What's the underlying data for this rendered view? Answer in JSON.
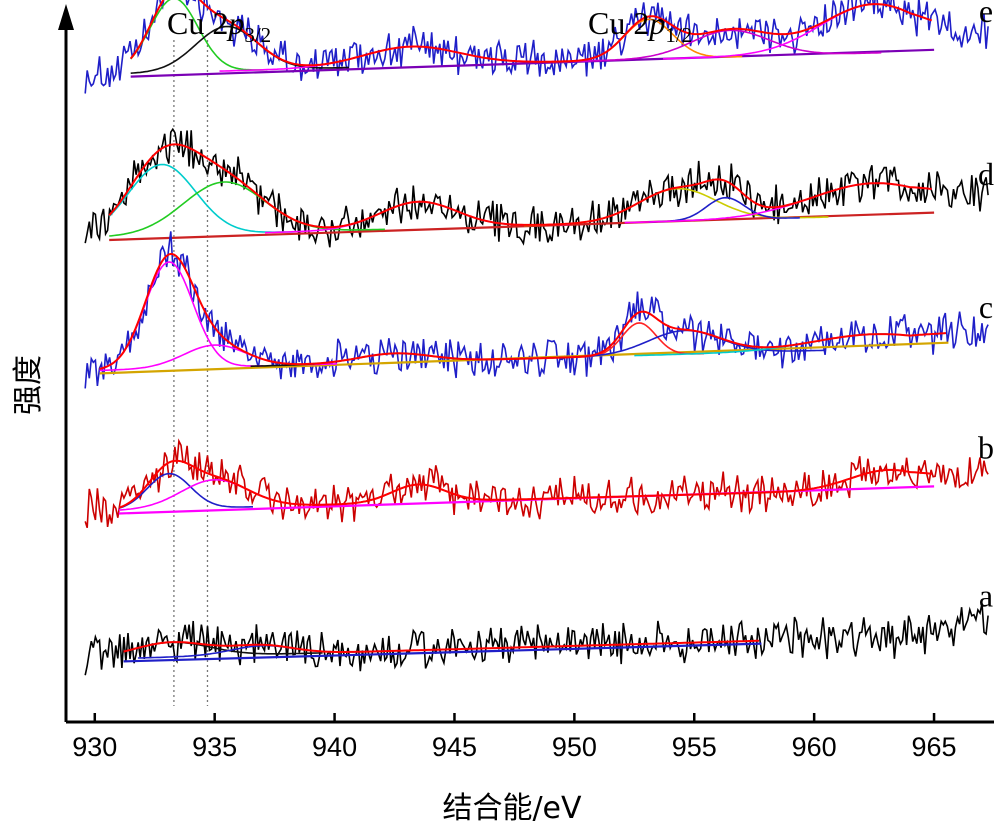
{
  "chart_data": {
    "type": "line",
    "xlabel": "结合能/eV",
    "ylabel": "强度",
    "xlim": [
      928.8,
      967.5
    ],
    "xticks": [
      930,
      935,
      940,
      945,
      950,
      955,
      960,
      965
    ],
    "xtick_labels": [
      "930",
      "935",
      "940",
      "945",
      "950",
      "955",
      "960",
      "965"
    ],
    "y_ticks_shown": false,
    "grid": false,
    "annotations": [
      {
        "base": "Cu 2",
        "italic": "p",
        "sub": "3/2",
        "x": 933.6
      },
      {
        "base": "Cu 2",
        "italic": "p",
        "sub": "1/2",
        "x": 955.0
      }
    ],
    "reference_lines_x": [
      933.3,
      934.7
    ],
    "series": [
      {
        "name": "e",
        "raw_color": "#1f1fc8",
        "offset": 3.95,
        "fit_range": [
          931.5,
          965.0
        ],
        "peaks": [
          [
            933.3,
            0.5,
            1.0
          ],
          [
            935.5,
            0.3,
            1.3
          ],
          [
            943.2,
            0.13,
            2.0
          ],
          [
            953.1,
            0.27,
            1.0
          ],
          [
            956.5,
            0.18,
            1.6
          ],
          [
            962.5,
            0.33,
            2.2
          ]
        ],
        "components": [
          {
            "x": 933.3,
            "color": "#22cc22"
          },
          {
            "x": 935.5,
            "color": "#111111"
          },
          {
            "x": 943.2,
            "color": "#ff00ff"
          },
          {
            "x": 953.1,
            "color": "#ff8800"
          },
          {
            "x": 956.5,
            "color": "#cc00cc"
          },
          {
            "x": 962.5,
            "color": "#ff00ff"
          }
        ]
      },
      {
        "name": "d",
        "raw_color": "#000000",
        "offset": 2.85,
        "fit_range": [
          930.6,
          965.0
        ],
        "peaks": [
          [
            932.8,
            0.48,
            1.4
          ],
          [
            935.4,
            0.35,
            1.7
          ],
          [
            943.5,
            0.18,
            1.6
          ],
          [
            954.3,
            0.22,
            1.6
          ],
          [
            956.3,
            0.15,
            0.8
          ],
          [
            962.5,
            0.22,
            2.6
          ]
        ],
        "components": [
          {
            "x": 932.8,
            "color": "#00cccc"
          },
          {
            "x": 935.4,
            "color": "#22cc22"
          },
          {
            "x": 943.5,
            "color": "#ff00ff"
          },
          {
            "x": 954.3,
            "color": "#cccc00"
          },
          {
            "x": 956.3,
            "color": "#1f1fc8"
          },
          {
            "x": 962.5,
            "color": "#ff00ff"
          }
        ]
      },
      {
        "name": "c",
        "raw_color": "#1f1fc8",
        "offset": 1.95,
        "fit_range": [
          930.2,
          965.6
        ],
        "peaks": [
          [
            933.1,
            0.72,
            1.0
          ],
          [
            935.0,
            0.15,
            1.3
          ],
          [
            942.5,
            0.06,
            1.5
          ],
          [
            952.7,
            0.22,
            0.7
          ],
          [
            954.6,
            0.16,
            1.5
          ],
          [
            962.5,
            0.1,
            2.5
          ]
        ],
        "components": [
          {
            "x": 933.1,
            "color": "#ff00ff"
          },
          {
            "x": 935.0,
            "color": "#ff00ff"
          },
          {
            "x": 942.5,
            "color": "#111111"
          },
          {
            "x": 952.7,
            "color": "#ff2222"
          },
          {
            "x": 954.6,
            "color": "#1f1fc8"
          },
          {
            "x": 962.5,
            "color": "#00cccc"
          }
        ]
      },
      {
        "name": "b",
        "raw_color": "#cc0000",
        "offset": 1.0,
        "fit_range": [
          931.0,
          965.0
        ],
        "peaks": [
          [
            933.1,
            0.24,
            0.9
          ],
          [
            935.0,
            0.19,
            1.4
          ],
          [
            943.5,
            0.12,
            1.1
          ],
          [
            963.1,
            0.13,
            1.6
          ]
        ],
        "components": [
          {
            "x": 933.1,
            "color": "#1f1fc8"
          },
          {
            "x": 935.0,
            "color": "#ff00ff"
          },
          {
            "x": 943.5,
            "color": "#cc0000"
          },
          {
            "x": 963.1,
            "color": "#cc0000"
          }
        ]
      },
      {
        "name": "a",
        "raw_color": "#000000",
        "offset": 0.0,
        "fit_range": [
          931.2,
          957.8
        ],
        "peaks": [
          [
            933.2,
            0.1,
            1.6
          ],
          [
            937.0,
            0.06,
            1.3
          ]
        ],
        "components": [
          {
            "x": 933.2,
            "color": "#111111"
          },
          {
            "x": 937.0,
            "color": "#1f1fc8"
          }
        ]
      }
    ],
    "background_line_colors": [
      "#7a00b5",
      "#cc2222",
      "#d4a500",
      "#ff00ff",
      "#1f1fc8"
    ],
    "fit_line_color": "#ff0000"
  },
  "labels": {
    "peak1_base": "Cu 2",
    "peak1_italic": "p",
    "peak1_sub": "3/2",
    "peak2_base": "Cu 2",
    "peak2_italic": "p",
    "peak2_sub": "1/2"
  }
}
